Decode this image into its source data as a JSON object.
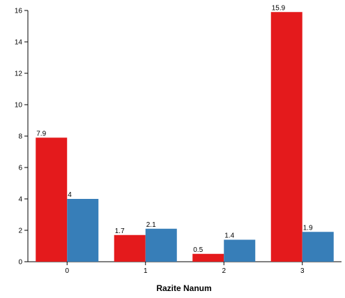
{
  "chart_data": {
    "type": "bar",
    "title": "",
    "xlabel": "Razite Nanum",
    "ylabel": "",
    "categories": [
      "0",
      "1",
      "2",
      "3"
    ],
    "series": [
      {
        "color": "#e41a1c",
        "values": [
          7.9,
          1.7,
          0.5,
          15.9
        ],
        "labels": [
          "7.9",
          "1.7",
          "0.5",
          "15.9"
        ]
      },
      {
        "color": "#377eb8",
        "values": [
          4,
          2.1,
          1.4,
          1.9
        ],
        "labels": [
          "4",
          "2.1",
          "1.4",
          "1.9"
        ]
      }
    ],
    "ylim": [
      0,
      16
    ],
    "yticks": [
      "0",
      "2",
      "4",
      "6",
      "8",
      "10",
      "12",
      "14",
      "16"
    ],
    "grid": false,
    "legend": "none"
  }
}
